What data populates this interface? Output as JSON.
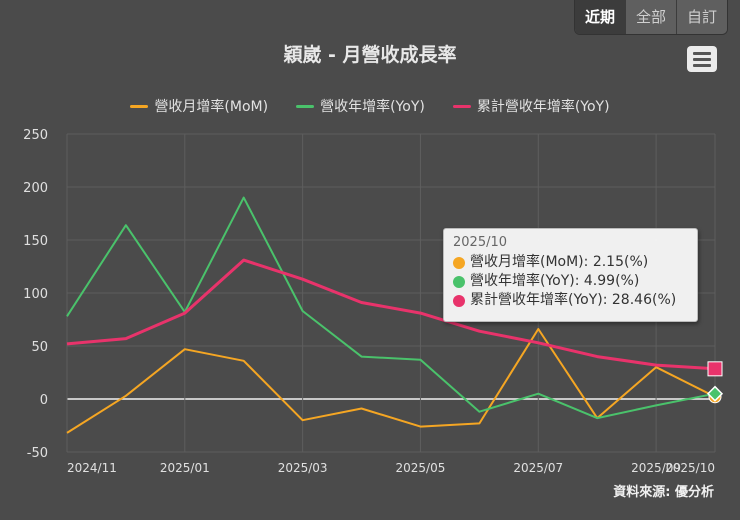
{
  "range_buttons": [
    {
      "label": "近期",
      "active": true
    },
    {
      "label": "全部",
      "active": false
    },
    {
      "label": "自訂",
      "active": false
    }
  ],
  "menu_icon": "hamburger-menu-icon",
  "source": "資料來源: 優分析",
  "tooltip": {
    "header": "2025/10",
    "rows": [
      {
        "text": "營收月增率(MoM): 2.15(%)",
        "color": "#f5a623"
      },
      {
        "text": "營收年增率(YoY): 4.99(%)",
        "color": "#4ac26b"
      },
      {
        "text": "累計營收年增率(YoY): 28.46(%)",
        "color": "#e8336b"
      }
    ]
  },
  "chart_data": {
    "type": "line",
    "title": "穎崴 - 月營收成長率",
    "x": [
      "2024/11",
      "2024/12",
      "2025/01",
      "2025/02",
      "2025/03",
      "2025/04",
      "2025/05",
      "2025/06",
      "2025/07",
      "2025/08",
      "2025/09",
      "2025/10"
    ],
    "x_tick_labels": [
      "2024/11",
      "2025/01",
      "2025/03",
      "2025/05",
      "2025/07",
      "2025/09",
      "2025/10"
    ],
    "y_ticks": [
      250,
      200,
      150,
      100,
      50,
      0,
      -50
    ],
    "ylim": [
      -50,
      250
    ],
    "grid": true,
    "legend_position": "top-center",
    "series": [
      {
        "name": "營收月增率(MoM)",
        "color": "#f5a623",
        "values": [
          -32,
          3,
          47,
          36,
          -20,
          -9,
          -26,
          -23,
          66,
          -18,
          30,
          2.15
        ]
      },
      {
        "name": "營收年增率(YoY)",
        "color": "#4ac26b",
        "values": [
          78,
          164,
          82,
          190,
          83,
          40,
          37,
          -12,
          5,
          -18,
          -6,
          4.99
        ]
      },
      {
        "name": "累計營收年增率(YoY)",
        "color": "#e8336b",
        "values": [
          52,
          57,
          81,
          131,
          113,
          91,
          81,
          64,
          53,
          40,
          32,
          28.46
        ]
      }
    ]
  }
}
